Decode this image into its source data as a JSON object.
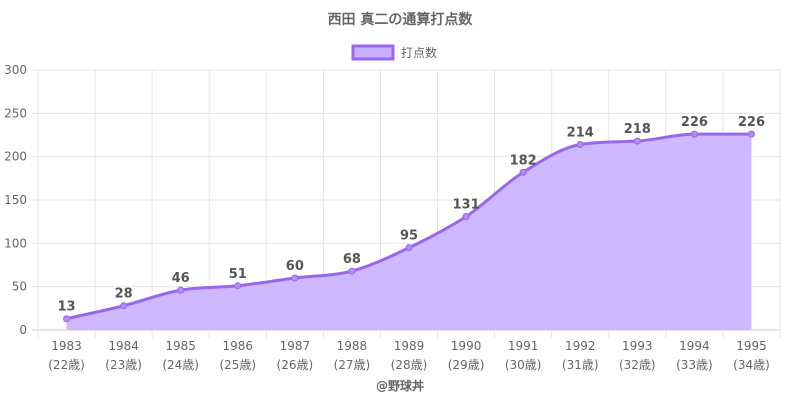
{
  "chart_data": {
    "type": "area",
    "title": "西田 真二の通算打点数",
    "legend": {
      "position": "top",
      "label": "打点数"
    },
    "categories": [
      "1983",
      "1984",
      "1985",
      "1986",
      "1987",
      "1988",
      "1989",
      "1990",
      "1991",
      "1992",
      "1993",
      "1994",
      "1995"
    ],
    "category_sublabels": [
      "(22歳)",
      "(23歳)",
      "(24歳)",
      "(25歳)",
      "(26歳)",
      "(27歳)",
      "(28歳)",
      "(29歳)",
      "(30歳)",
      "(31歳)",
      "(32歳)",
      "(33歳)",
      "(34歳)"
    ],
    "series": [
      {
        "name": "打点数",
        "values": [
          13,
          28,
          46,
          51,
          60,
          68,
          95,
          131,
          182,
          214,
          218,
          226,
          226
        ]
      }
    ],
    "ylim": [
      0,
      300
    ],
    "yticks": [
      0,
      50,
      100,
      150,
      200,
      250,
      300
    ],
    "grid": true,
    "data_labels": true,
    "colors": {
      "line": "#9966ee",
      "fill": "#c9b0ff",
      "grid": "#e5e5e5",
      "text": "#666666"
    }
  },
  "credit": "@野球丼"
}
